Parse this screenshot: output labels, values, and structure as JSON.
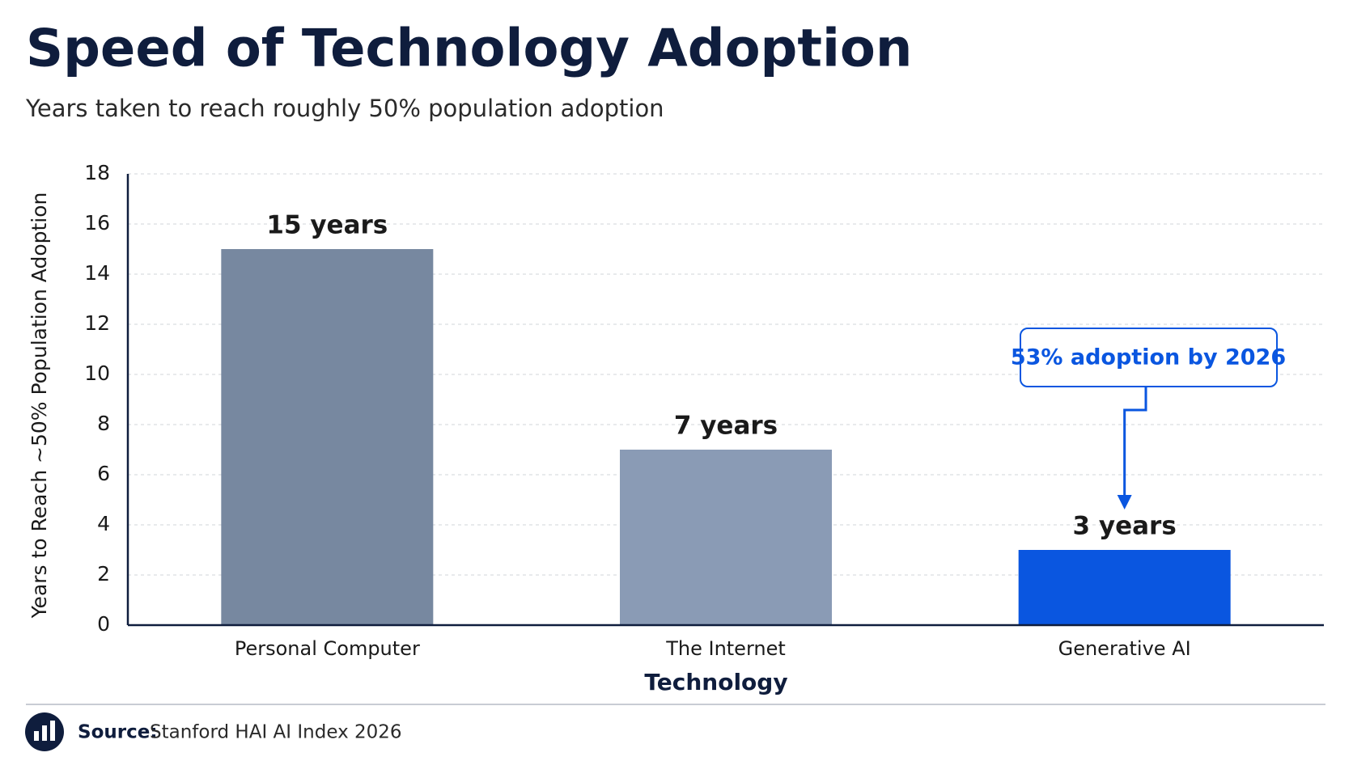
{
  "chart_data": {
    "type": "bar",
    "title": "Speed of Technology Adoption",
    "subtitle": "Years taken to reach roughly 50% population adoption",
    "x_label": "Technology",
    "y_label": "Years to Reach ~50% Population Adoption",
    "categories": [
      "Personal Computer",
      "The Internet",
      "Generative AI"
    ],
    "values": [
      15,
      7,
      3
    ],
    "value_labels": [
      "15 years",
      "7 years",
      "3 years"
    ],
    "colors": [
      "#7788a0",
      "#8a9bb5",
      "#0a56e0"
    ],
    "ylim": [
      0,
      18
    ],
    "yticks": [
      0,
      2,
      4,
      6,
      8,
      10,
      12,
      14,
      16,
      18
    ],
    "grid": true,
    "annotation": "53% adoption by 2026"
  },
  "source": {
    "label": "Source:",
    "text": "Stanford HAI AI Index 2026"
  }
}
